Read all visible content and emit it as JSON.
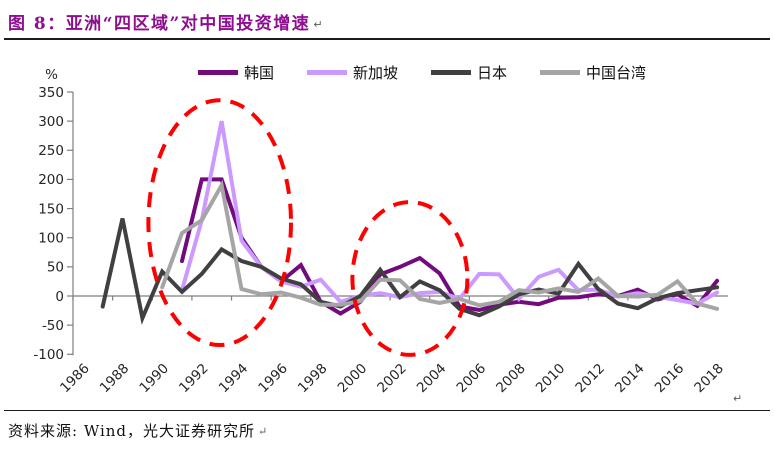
{
  "header": {
    "fig_label": "图 8：",
    "title": "亚洲“四区域”对中国投资增速"
  },
  "marks": {
    "paragraph": "↵"
  },
  "footer": {
    "source": "资料来源: Wind，光大证券研究所"
  },
  "chart_data": {
    "type": "line",
    "title": "亚洲“四区域”对中国投资增速",
    "unit_label": "%",
    "xlabel": "",
    "ylabel": "%",
    "ylim": [
      -100,
      350
    ],
    "yticks": [
      350,
      300,
      250,
      200,
      150,
      100,
      50,
      0,
      -50,
      -100
    ],
    "x_tick_labels": [
      "1986",
      "1988",
      "1990",
      "1992",
      "1994",
      "1996",
      "1998",
      "2000",
      "2002",
      "2004",
      "2006",
      "2008",
      "2010",
      "2012",
      "2014",
      "2016",
      "2018"
    ],
    "years": [
      1986,
      1987,
      1988,
      1989,
      1990,
      1991,
      1992,
      1993,
      1994,
      1995,
      1996,
      1997,
      1998,
      1999,
      2000,
      2001,
      2002,
      2003,
      2004,
      2005,
      2006,
      2007,
      2008,
      2009,
      2010,
      2011,
      2012,
      2013,
      2014,
      2015,
      2016,
      2017,
      2018
    ],
    "grid": "zero-line-only",
    "legend_position": "top-center",
    "axis_color": "#7F7F7F",
    "text_color": "#262626",
    "series": [
      {
        "name": "韩国",
        "color": "#730B7D",
        "values": [
          null,
          null,
          null,
          null,
          null,
          60,
          200,
          200,
          100,
          50,
          25,
          53,
          -10,
          -30,
          -10,
          37,
          50,
          65,
          39,
          -18,
          -24,
          -15,
          -10,
          -14,
          -3,
          -2,
          3,
          0,
          11,
          -6,
          3,
          -17,
          26
        ]
      },
      {
        "name": "新加坡",
        "color": "#CC99FF",
        "values": [
          null,
          null,
          null,
          null,
          null,
          10,
          130,
          300,
          95,
          50,
          25,
          16,
          28,
          -10,
          0,
          5,
          -2,
          5,
          7,
          -5,
          38,
          37,
          -5,
          33,
          45,
          10,
          11,
          -1,
          5,
          -1,
          -7,
          -13,
          6
        ]
      },
      {
        "name": "日本",
        "color": "#404040",
        "values": [
          null,
          -18,
          133,
          -38,
          42,
          7,
          38,
          80,
          60,
          50,
          30,
          20,
          -10,
          -18,
          0,
          45,
          -2,
          25,
          10,
          -22,
          -33,
          -18,
          3,
          11,
          4,
          55,
          12,
          -13,
          -21,
          -4,
          5,
          10,
          15
        ]
      },
      {
        "name": "中国台湾",
        "color": "#A5A5A5",
        "values": [
          null,
          null,
          null,
          null,
          15,
          108,
          130,
          190,
          12,
          3,
          6,
          -3,
          -15,
          -15,
          -9,
          28,
          27,
          -5,
          -12,
          -5,
          -16,
          -10,
          10,
          6,
          13,
          7,
          30,
          0,
          -1,
          2,
          25,
          -13,
          -22
        ]
      }
    ],
    "annotations": [
      {
        "type": "ellipse",
        "style": "dashed",
        "color": "#FF0000",
        "year_range": [
          1989.3,
          1996.5
        ],
        "value_range": [
          -84,
          336
        ]
      },
      {
        "type": "ellipse",
        "style": "dashed",
        "color": "#FF0000",
        "year_range": [
          1999.6,
          2005.4
        ],
        "value_range": [
          -101,
          161
        ]
      }
    ]
  }
}
